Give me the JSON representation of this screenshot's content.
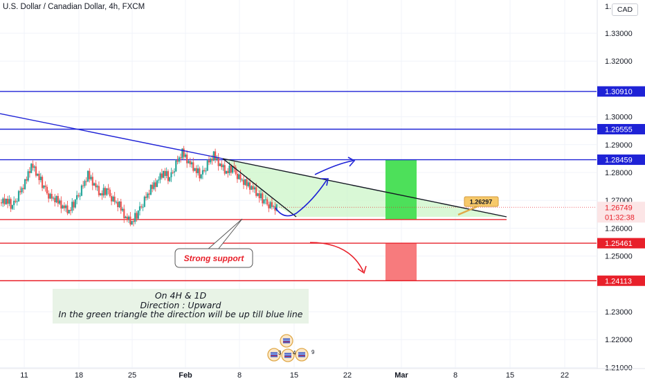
{
  "header": {
    "title": "U.S. Dollar / Canadian Dollar, 4h, FXCM",
    "currency_button": "CAD"
  },
  "chart_data": {
    "type": "candlestick",
    "symbol": "USDCAD",
    "timeframe": "4h",
    "source": "FXCM",
    "y_ticks": [
      "1.33000",
      "1.32000",
      "1.30000",
      "1.29000",
      "1.28000",
      "1.27000",
      "1.26000",
      "1.25000",
      "1.23000",
      "1.22000",
      "1.21000"
    ],
    "ylim": [
      1.207,
      1.3355
    ],
    "x_ticks": [
      "11",
      "18",
      "25",
      "Feb",
      "8",
      "15",
      "22",
      "Mar",
      "8",
      "15",
      "22"
    ],
    "price_labels": {
      "current": "1.26749",
      "countdown": "01:32:38",
      "callout": "1.26297",
      "top_partial": "1."
    },
    "horizontal_levels": [
      {
        "value": 1.3091,
        "label": "1.30910",
        "color": "#1e22d6"
      },
      {
        "value": 1.29555,
        "label": "1.29555",
        "color": "#1e22d6"
      },
      {
        "value": 1.28459,
        "label": "1.28459",
        "color": "#1e22d6"
      },
      {
        "value": 1.25461,
        "label": "1.25461",
        "color": "#e8202a"
      },
      {
        "value": 1.24113,
        "label": "1.24113",
        "color": "#e8202a"
      }
    ],
    "support_level": 1.2631,
    "support_label": "Strong support",
    "long_target_zone": [
      1.2631,
      1.28459
    ],
    "short_target_zone": [
      1.24113,
      1.25461
    ],
    "colors": {
      "up_candle": "#26a69a",
      "down_candle": "#ef5350",
      "blue_level": "#1e22d6",
      "red_level": "#e8202a",
      "green_zone": "#4de05a",
      "red_zone": "#f77b7d",
      "triangle_fill": "#ccf5c8"
    },
    "grid": true,
    "candle_closes_approx": [
      1.27,
      1.268,
      1.272,
      1.276,
      1.283,
      1.279,
      1.275,
      1.271,
      1.27,
      1.268,
      1.266,
      1.27,
      1.274,
      1.279,
      1.276,
      1.272,
      1.274,
      1.27,
      1.268,
      1.264,
      1.262,
      1.266,
      1.27,
      1.274,
      1.277,
      1.28,
      1.278,
      1.283,
      1.287,
      1.284,
      1.281,
      1.279,
      1.283,
      1.286,
      1.283,
      1.28,
      1.282,
      1.278,
      1.276,
      1.275,
      1.272,
      1.27,
      1.268,
      1.267
    ]
  },
  "annotation": {
    "line1": "On 4H & 1D",
    "line2": "Direction : Upward",
    "line3": "In the green triangle the direction will be up till blue line"
  },
  "events": {
    "badges": [
      "3",
      "4",
      "9"
    ]
  }
}
